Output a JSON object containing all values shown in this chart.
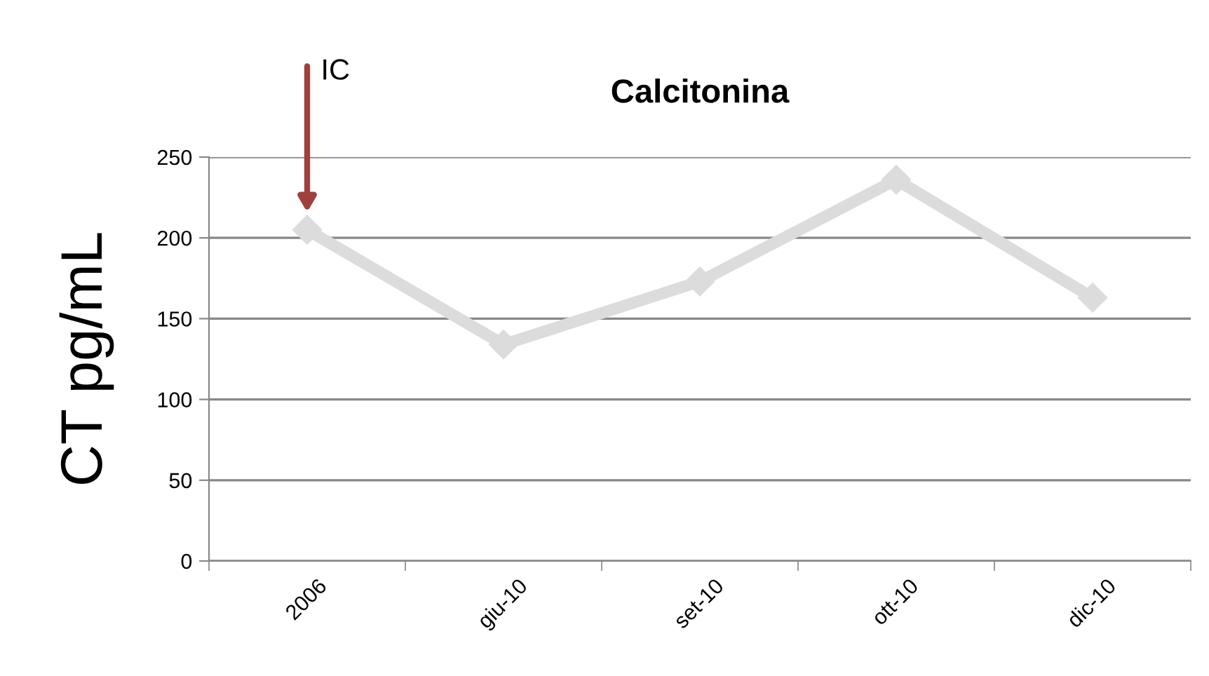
{
  "chart_data": {
    "type": "line",
    "title": "Calcitonina",
    "ylabel": "CT pg/mL",
    "categories": [
      "2006",
      "giu-10",
      "set-10",
      "ott-10",
      "dic-10"
    ],
    "series": [
      {
        "color": "#dcdcdc",
        "values": [
          205,
          134,
          173,
          236,
          163
        ]
      }
    ],
    "annotations": [
      "IC"
    ],
    "ylim": [
      0,
      250
    ],
    "yticks": [
      0,
      50,
      100,
      150,
      200,
      250
    ],
    "grid": "y",
    "legend": false,
    "marker": "diamond",
    "line_style": "solid"
  }
}
